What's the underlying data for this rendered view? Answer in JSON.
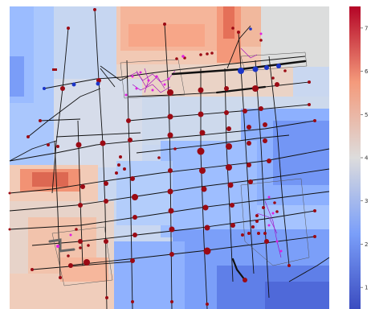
{
  "figure": {
    "colormap": "coolwarm",
    "colorbar": {
      "ticks": [
        "1",
        "2",
        "3",
        "4",
        "5",
        "6",
        "7"
      ],
      "range": [
        0.5,
        7.5
      ]
    },
    "colors": {
      "cold": "#3b4cc0",
      "neutral": "#dddddd",
      "hot": "#b40426",
      "node": "#9b0a14",
      "node_highlight": "#1c35c8",
      "edge": "#111111",
      "local_edge": "#a000c0",
      "local_node": "#e020e0"
    }
  }
}
